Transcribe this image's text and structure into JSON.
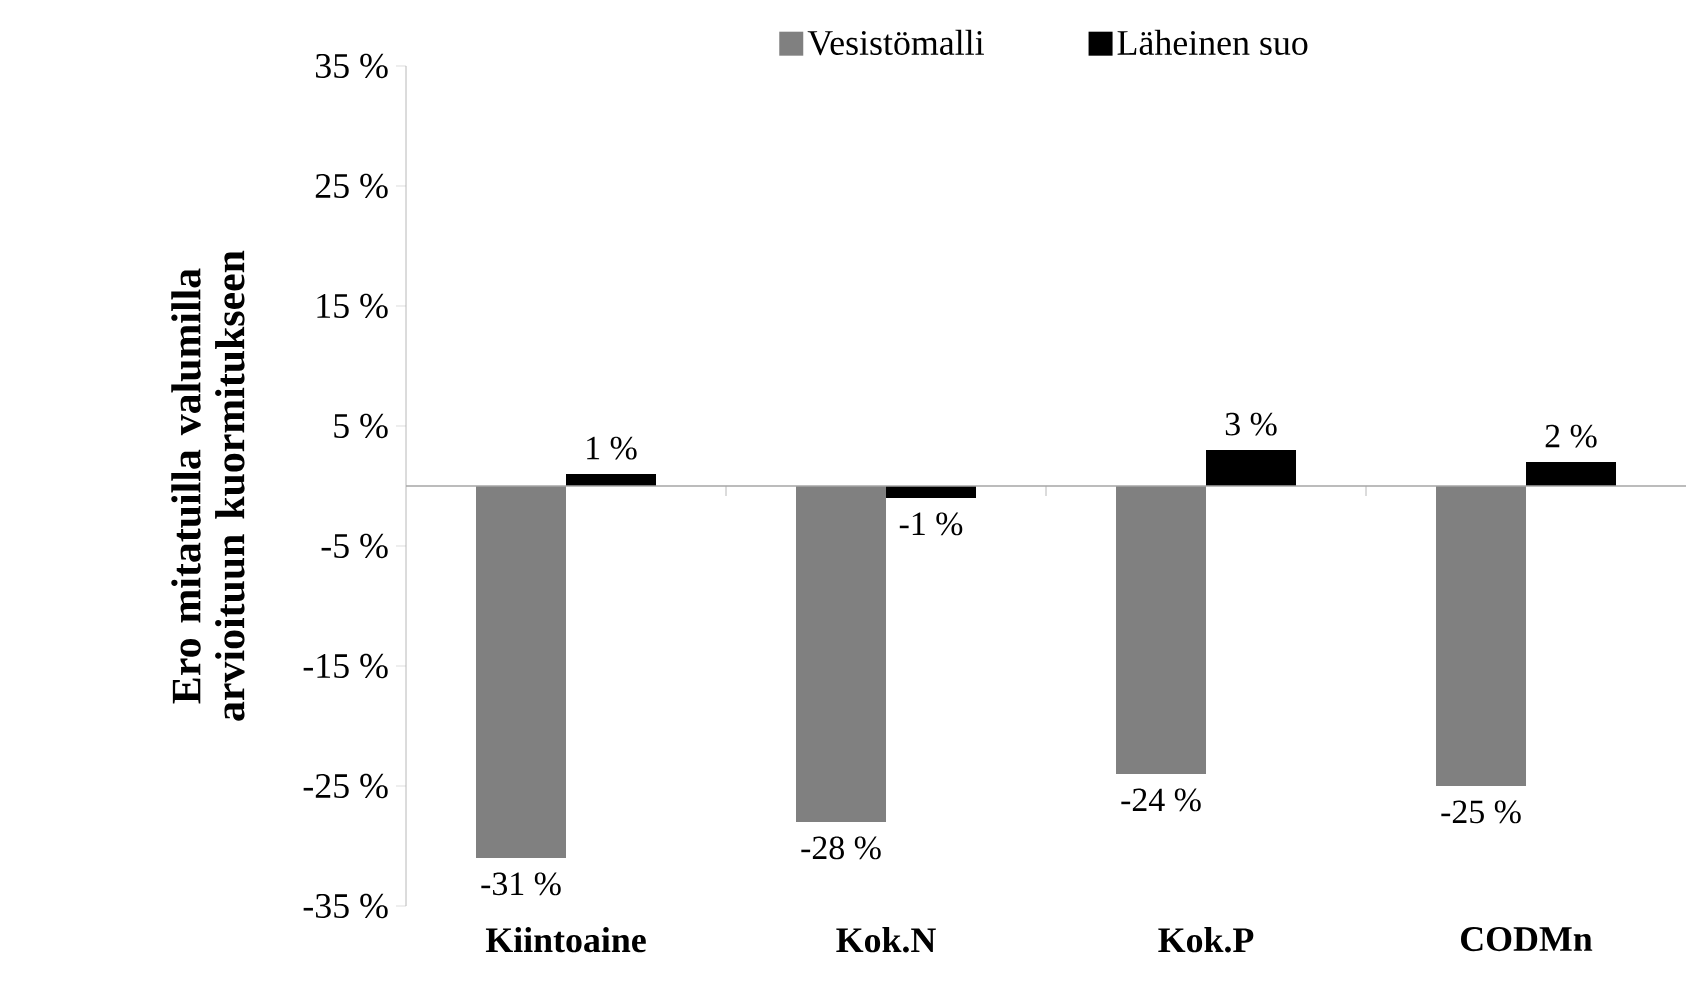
{
  "chart_data": {
    "type": "bar",
    "ylabel": "Ero mitatuilla valumilla arvioituun kuormitukseen",
    "categories": [
      "Kiintoaine",
      "Kok.N",
      "Kok.P",
      "CODMn"
    ],
    "series": [
      {
        "name": "Vesistömalli",
        "color": "#808080",
        "values": [
          -31,
          -28,
          -24,
          -25
        ],
        "value_labels": [
          "-31 %",
          "-28 %",
          "-24 %",
          "-25 %"
        ]
      },
      {
        "name": "Läheinen suo",
        "color": "#000000",
        "values": [
          1,
          -1,
          3,
          2
        ],
        "value_labels": [
          "1 %",
          "-1 %",
          "3 %",
          "2 %"
        ]
      }
    ],
    "ylim": [
      -35,
      35
    ],
    "yticks": [
      {
        "value": -35,
        "label": "-35 %"
      },
      {
        "value": -25,
        "label": "-25 %"
      },
      {
        "value": -15,
        "label": "-15 %"
      },
      {
        "value": -5,
        "label": "-5 %"
      },
      {
        "value": 5,
        "label": "5 %"
      },
      {
        "value": 15,
        "label": "15 %"
      },
      {
        "value": 25,
        "label": "25 %"
      },
      {
        "value": 35,
        "label": "35 %"
      }
    ],
    "legend": "top",
    "grid": false
  }
}
